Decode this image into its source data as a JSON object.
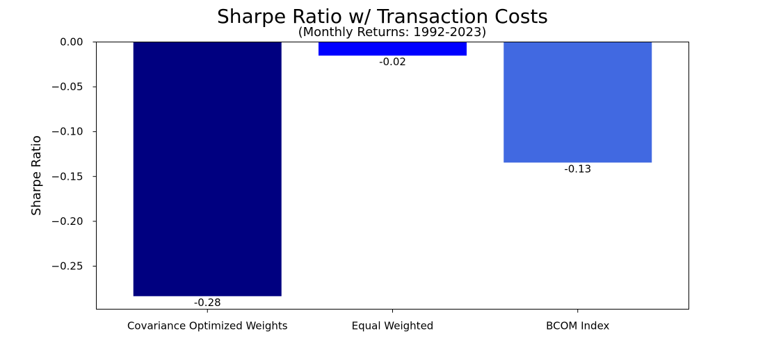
{
  "chart_data": {
    "type": "bar",
    "title": "Sharpe Ratio w/ Transaction Costs",
    "subtitle": "(Monthly Returns: 1992-2023)",
    "xlabel": "",
    "ylabel": "Sharpe Ratio",
    "categories": [
      "Covariance Optimized Weights",
      "Equal Weighted",
      "BCOM Index"
    ],
    "values": [
      -0.2835,
      -0.0152,
      -0.1345
    ],
    "data_labels": [
      "-0.28",
      "-0.02",
      "-0.13"
    ],
    "colors": [
      "#000080",
      "#0000FF",
      "#4169E1"
    ],
    "ylim": [
      -0.298,
      0.0
    ],
    "yticks": [
      0.0,
      -0.05,
      -0.1,
      -0.15,
      -0.2,
      -0.25
    ],
    "ytick_labels": [
      "0.00",
      "−0.05",
      "−0.10",
      "−0.15",
      "−0.20",
      "−0.25"
    ],
    "grid": false,
    "legend": "none"
  }
}
